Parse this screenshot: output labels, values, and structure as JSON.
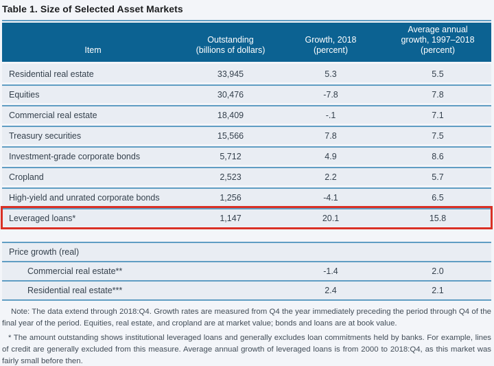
{
  "title": "Table 1. Size of Selected Asset Markets",
  "table": {
    "columns": [
      "Item",
      "Outstanding\n(billions of dollars)",
      "Growth, 2018\n(percent)",
      "Average annual\ngrowth, 1997–2018\n(percent)"
    ],
    "rows": [
      {
        "item": "Residential real estate",
        "outstanding": "33,945",
        "growth_2018": "5.3",
        "avg_growth": "5.5",
        "highlighted": false
      },
      {
        "item": "Equities",
        "outstanding": "30,476",
        "growth_2018": "-7.8",
        "avg_growth": "7.8",
        "highlighted": false
      },
      {
        "item": "Commercial real estate",
        "outstanding": "18,409",
        "growth_2018": "-.1",
        "avg_growth": "7.1",
        "highlighted": false
      },
      {
        "item": "Treasury securities",
        "outstanding": "15,566",
        "growth_2018": "7.8",
        "avg_growth": "7.5",
        "highlighted": false
      },
      {
        "item": "Investment-grade corporate bonds",
        "outstanding": "5,712",
        "growth_2018": "4.9",
        "avg_growth": "8.6",
        "highlighted": false
      },
      {
        "item": "Cropland",
        "outstanding": "2,523",
        "growth_2018": "2.2",
        "avg_growth": "5.7",
        "highlighted": false
      },
      {
        "item": "High-yield and unrated corporate bonds",
        "outstanding": "1,256",
        "growth_2018": "-4.1",
        "avg_growth": "6.5",
        "highlighted": false
      },
      {
        "item": "Leveraged loans*",
        "outstanding": "1,147",
        "growth_2018": "20.1",
        "avg_growth": "15.8",
        "highlighted": true
      }
    ],
    "section": {
      "label": "Price growth (real)",
      "rows": [
        {
          "item": "Commercial real estate**",
          "outstanding": "",
          "growth_2018": "-1.4",
          "avg_growth": "2.0"
        },
        {
          "item": "Residential real estate***",
          "outstanding": "",
          "growth_2018": "2.4",
          "avg_growth": "2.1"
        }
      ]
    }
  },
  "notes": [
    "Note: The data extend through 2018:Q4. Growth rates are measured from Q4 the year immediately preceding the period through Q4 of the final year of the period. Equities, real estate, and cropland are at market value; bonds and loans are at book value.",
    "* The amount outstanding shows institutional leveraged loans and generally excludes loan commitments held by banks. For example, lines of credit are generally excluded from this measure. Average annual growth of leveraged loans is from 2000 to 2018:Q4, as this market was fairly small before then."
  ],
  "colors": {
    "page_bg": "#f3f5f9",
    "header_bg": "#0c6292",
    "header_text": "#ffffff",
    "row_bg": "#e9edf3",
    "rule": "#5f9dc3",
    "highlight_border": "#d93025",
    "row_text": "#333f4b",
    "title_text": "#1b1c1e",
    "notes_text": "#414c57"
  }
}
